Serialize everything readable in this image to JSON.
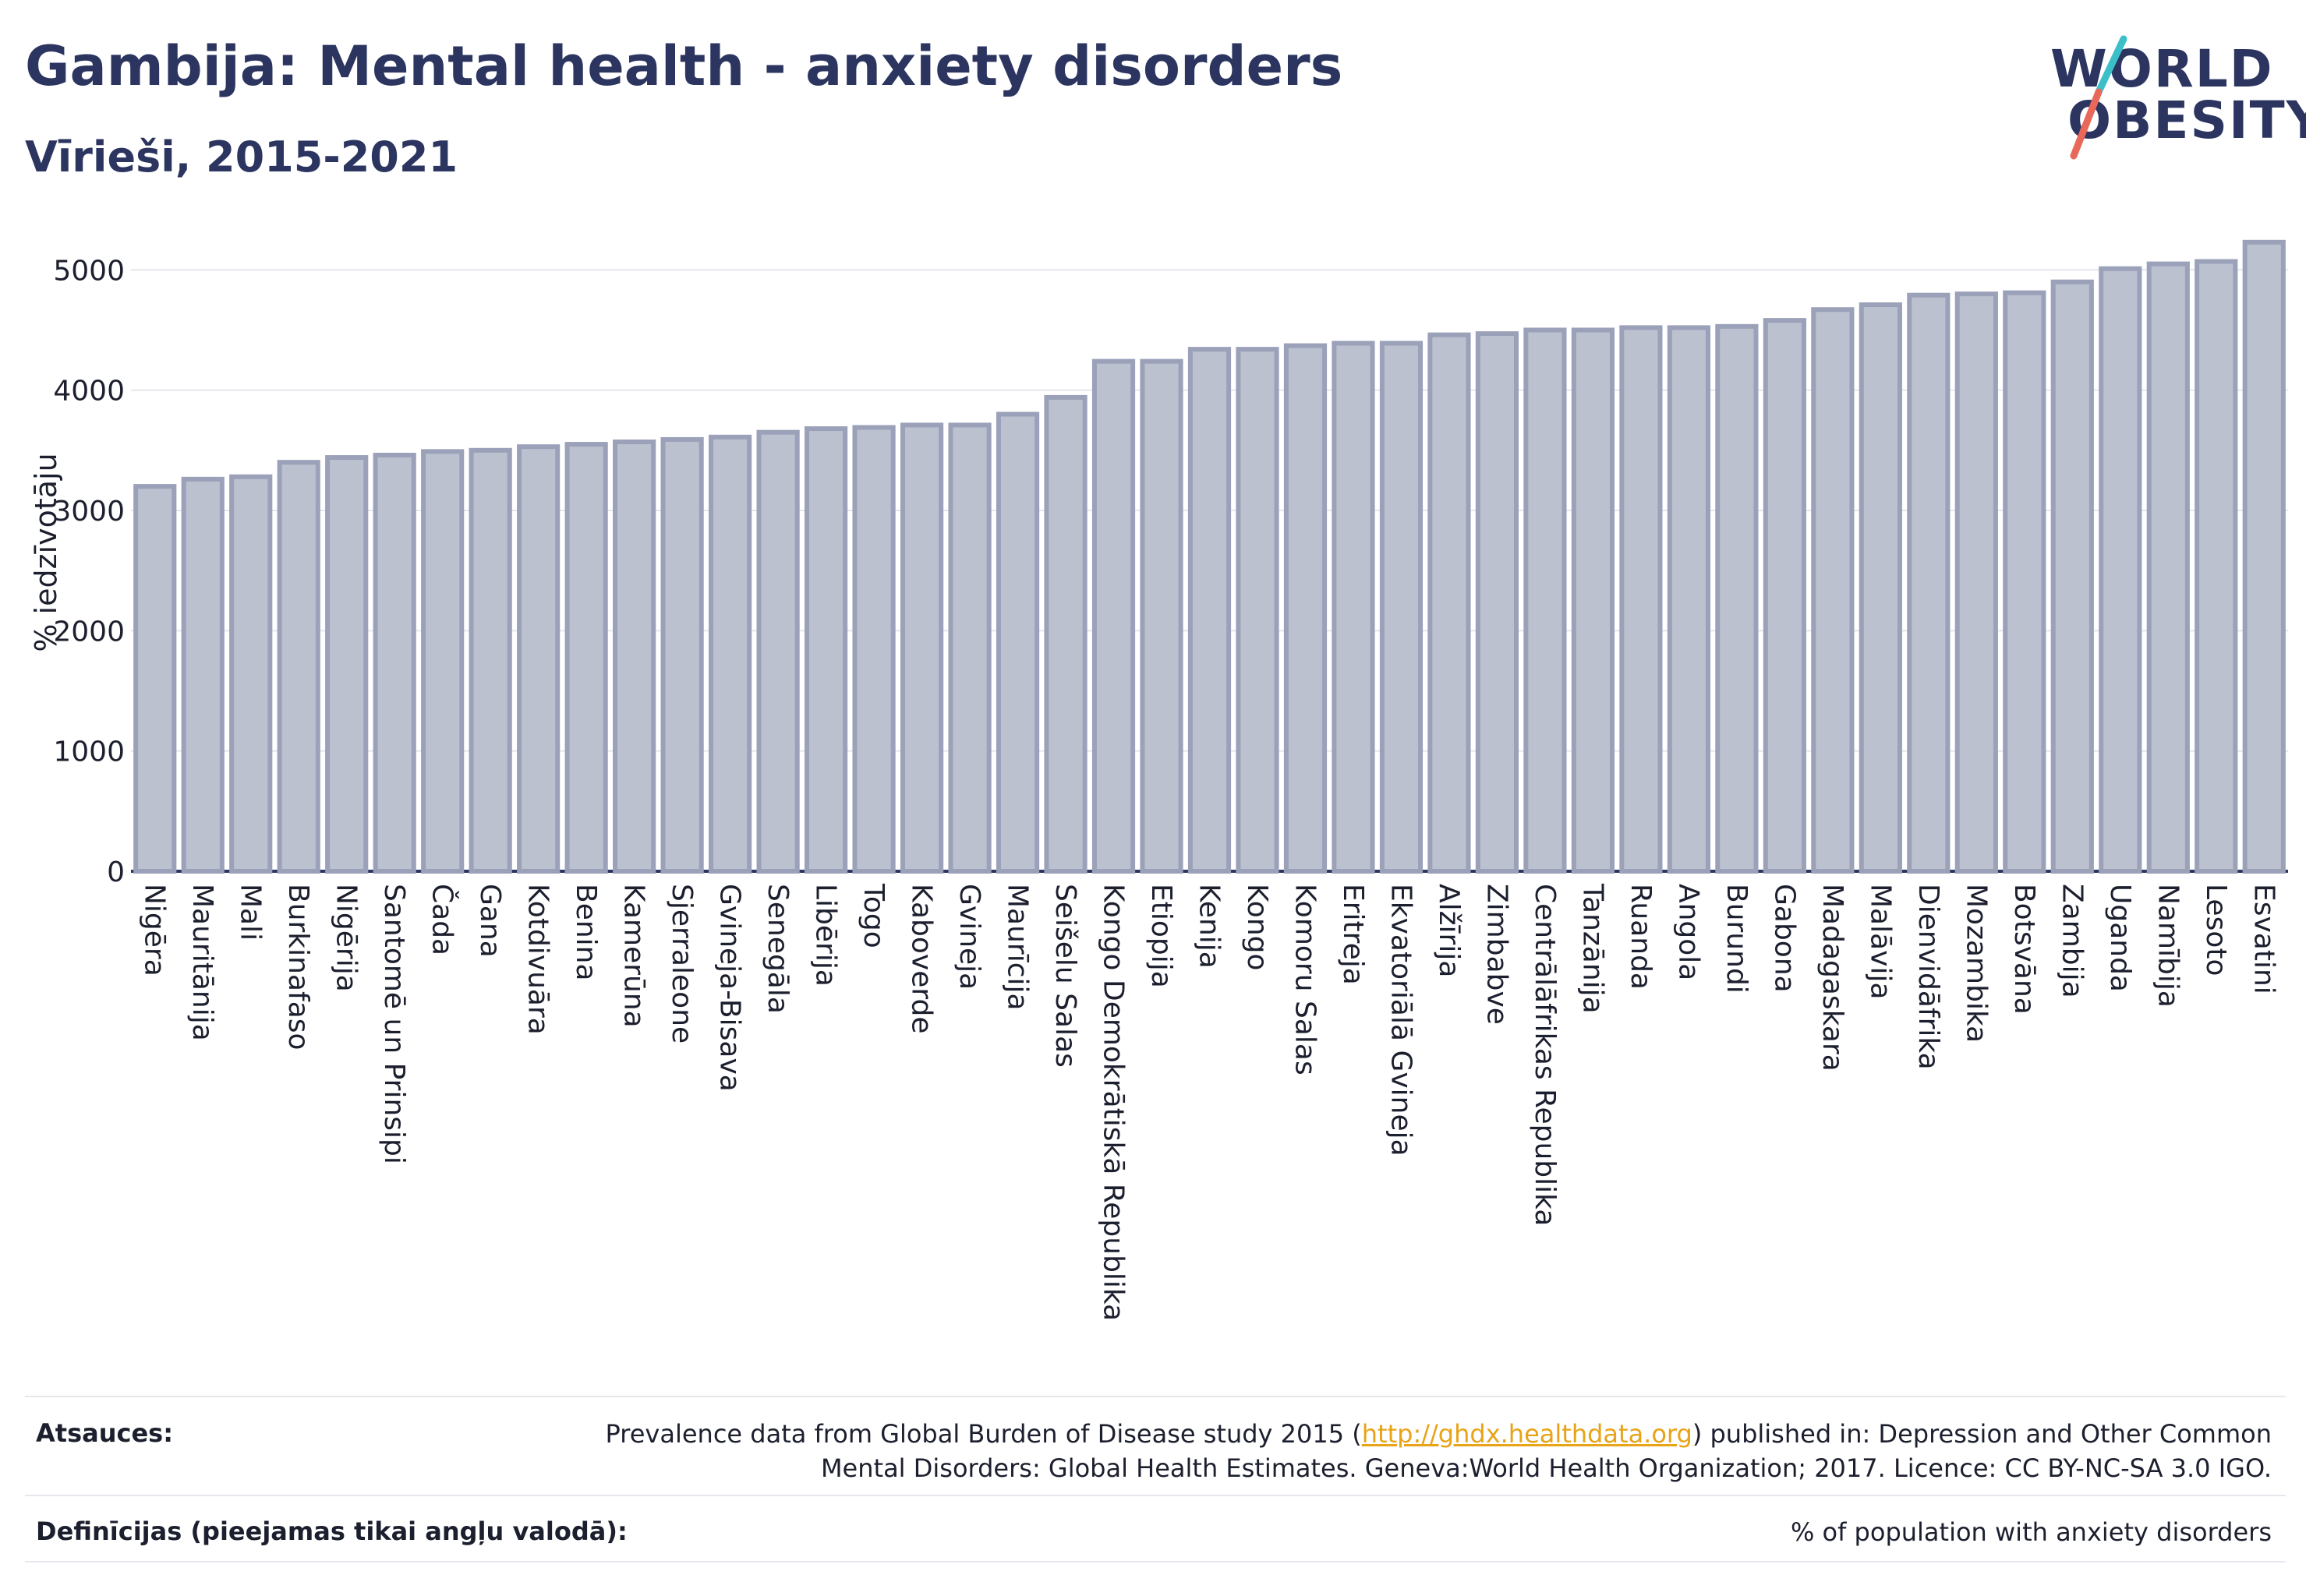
{
  "header": {
    "title": "Gambija: Mental health - anxiety disorders",
    "subtitle": "Vīrieši, 2015-2021"
  },
  "logo": {
    "line1": "WORLD",
    "line2": "OBESITY",
    "colors": {
      "text": "#2b3560",
      "slash_top": "#3bbfc9",
      "slash_bottom": "#e8685a"
    }
  },
  "colors": {
    "bar_fill": "#bcc1d0",
    "bar_stroke": "#9aa1b8",
    "axis": "#2b3560",
    "grid": "#e4e6ec"
  },
  "chart_data": {
    "type": "bar",
    "title": "Gambija: Mental health - anxiety disorders",
    "subtitle": "Vīrieši, 2015-2021",
    "ylabel": "% iedzīvotāju",
    "xlabel": "",
    "ylim": [
      0,
      5300
    ],
    "yticks": [
      0,
      1000,
      2000,
      3000,
      4000,
      5000
    ],
    "grid": true,
    "categories": [
      "Nigēra",
      "Mauritānija",
      "Mali",
      "Burkinafaso",
      "Nigērija",
      "Santomē un Prinsipi",
      "Čada",
      "Gana",
      "Kotdivuāra",
      "Benina",
      "Kamerūna",
      "Sjerraleone",
      "Gvineja-Bisava",
      "Senegāla",
      "Libērija",
      "Togo",
      "Kaboverde",
      "Gvineja",
      "Maurīcija",
      "Seišelu Salas",
      "Kongo Demokrātiskā Republika",
      "Etiopija",
      "Kenija",
      "Kongo",
      "Komoru Salas",
      "Eritreja",
      "Ekvatoriālā Gvineja",
      "Alžīrija",
      "Zimbabve",
      "Centrālāfrikas Republika",
      "Tanzānija",
      "Ruanda",
      "Angola",
      "Burundi",
      "Gabona",
      "Madagaskara",
      "Malāvija",
      "Dienvidāfrika",
      "Mozambika",
      "Botsvāna",
      "Zambija",
      "Uganda",
      "Namībija",
      "Lesoto",
      "Esvatini"
    ],
    "values": [
      3200,
      3260,
      3280,
      3400,
      3440,
      3460,
      3490,
      3500,
      3530,
      3550,
      3570,
      3590,
      3610,
      3650,
      3680,
      3690,
      3710,
      3710,
      3800,
      3940,
      4240,
      4240,
      4340,
      4340,
      4370,
      4390,
      4390,
      4460,
      4470,
      4500,
      4500,
      4520,
      4520,
      4530,
      4580,
      4670,
      4710,
      4790,
      4800,
      4810,
      4900,
      5010,
      5050,
      5070,
      5230
    ]
  },
  "footer": {
    "sources_label": "Atsauces:",
    "sources_text_1": "Prevalence data from Global Burden of Disease study 2015 (",
    "sources_link": "http://ghdx.healthdata.org",
    "sources_text_2": ") published in: Depression and Other Common",
    "sources_text_3": "Mental Disorders: Global Health Estimates. Geneva:World Health Organization; 2017. Licence: CC BY-NC-SA 3.0 IGO.",
    "definitions_label": "Definīcijas (pieejamas tikai angļu valodā):",
    "definitions_text": "% of population with anxiety disorders"
  }
}
